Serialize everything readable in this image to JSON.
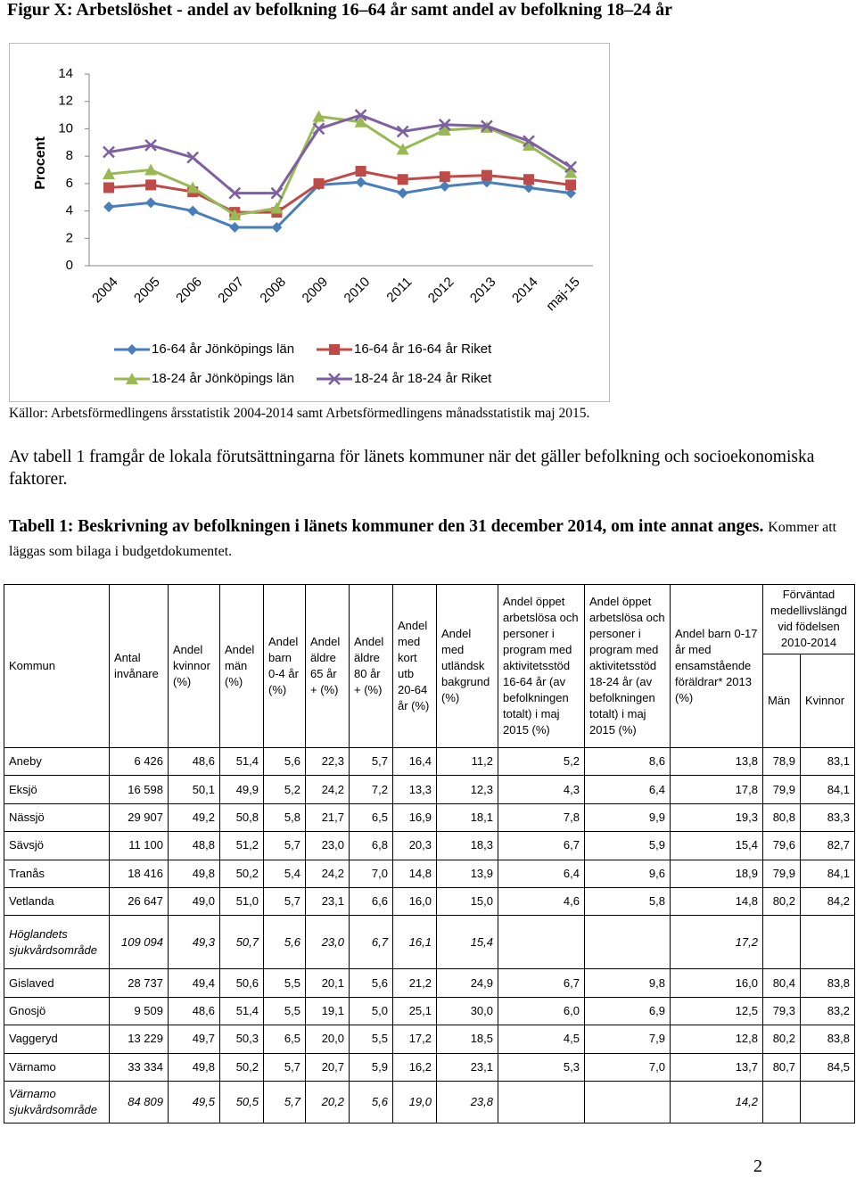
{
  "title": "Figur X: Arbetslöshet - andel av befolkning 16–64 år samt andel av befolkning 18–24 år",
  "chart_data": {
    "type": "line",
    "y_label": "Procent",
    "categories": [
      "2004",
      "2005",
      "2006",
      "2007",
      "2008",
      "2009",
      "2010",
      "2011",
      "2012",
      "2013",
      "2014",
      "maj-15"
    ],
    "series": [
      {
        "name": "16-64 år Jönköpings län",
        "color": "#4a7ebb",
        "marker": "diamond",
        "values": [
          4.3,
          4.6,
          4.0,
          2.8,
          2.8,
          5.9,
          6.1,
          5.3,
          5.8,
          6.1,
          5.7,
          5.3
        ]
      },
      {
        "name": "16-64 år 16-64 år Riket",
        "color": "#be4b48",
        "marker": "square",
        "values": [
          5.7,
          5.9,
          5.4,
          3.9,
          3.9,
          6.0,
          6.9,
          6.3,
          6.5,
          6.6,
          6.3,
          5.9
        ]
      },
      {
        "name": "18-24 år Jönköpings län",
        "color": "#98b954",
        "marker": "triangle",
        "values": [
          6.7,
          7.0,
          5.7,
          3.7,
          4.2,
          10.9,
          10.5,
          8.5,
          9.9,
          10.1,
          8.8,
          6.8
        ]
      },
      {
        "name": "18-24 år 18-24 år Riket",
        "color": "#7d60a0",
        "marker": "x",
        "values": [
          8.3,
          8.8,
          7.9,
          5.3,
          5.3,
          10.0,
          11.0,
          9.8,
          10.3,
          10.2,
          9.1,
          7.2
        ]
      }
    ],
    "ylim": [
      0,
      14
    ],
    "yticks": [
      0,
      2,
      4,
      6,
      8,
      10,
      12,
      14
    ],
    "grid": false,
    "legend": "bottom"
  },
  "source": "Källor: Arbetsförmedlingens årsstatistik 2004-2014 samt Arbetsförmedlingens månadsstatistik maj 2015.",
  "paragraph": "Av tabell 1 framgår de lokala förutsättningarna för länets kommuner när det gäller befolkning och socioekonomiska faktorer.",
  "table": {
    "caption": "Tabell 1: Beskrivning av befolkningen i länets kommuner den 31 december 2014, om inte annat anges.",
    "caption_note": "Kommer att läggas som bilaga i budgetdokumentet.",
    "headers": [
      "Kommun",
      "Antal invånare",
      "Andel kvinnor (%)",
      "Andel män (%)",
      "Andel barn 0-4 år (%)",
      "Andel äldre 65 år + (%)",
      "Andel äldre 80 år + (%)",
      "Andel med kort utb 20-64 år (%)",
      "Andel med utländsk bakgrund (%)",
      "Andel öppet arbetslösa och personer i program med aktivitetsstöd 16-64 år (av befolkningen totalt) i maj 2015 (%)",
      "Andel öppet arbetslösa och personer i program med aktivitetsstöd 18-24 år (av befolkningen totalt) i maj 2015 (%)",
      "Andel barn 0-17 år med ensamstående föräldrar* 2013 (%)",
      "Förväntad medellivslängd vid födelsen 2010-2014"
    ],
    "subheaders": [
      "Män",
      "Kvinnor"
    ],
    "rows": [
      {
        "kommun": "Aneby",
        "values": [
          "6 426",
          "48,6",
          "51,4",
          "5,6",
          "22,3",
          "5,7",
          "16,4",
          "11,2",
          "5,2",
          "8,6",
          "13,8",
          "78,9",
          "83,1"
        ]
      },
      {
        "kommun": "Eksjö",
        "values": [
          "16 598",
          "50,1",
          "49,9",
          "5,2",
          "24,2",
          "7,2",
          "13,3",
          "12,3",
          "4,3",
          "6,4",
          "17,8",
          "79,9",
          "84,1"
        ]
      },
      {
        "kommun": "Nässjö",
        "values": [
          "29 907",
          "49,2",
          "50,8",
          "5,8",
          "21,7",
          "6,5",
          "16,9",
          "18,1",
          "7,8",
          "9,9",
          "19,3",
          "80,8",
          "83,3"
        ]
      },
      {
        "kommun": "Sävsjö",
        "values": [
          "11 100",
          "48,8",
          "51,2",
          "5,7",
          "23,0",
          "6,8",
          "20,3",
          "18,3",
          "6,7",
          "5,9",
          "15,4",
          "79,6",
          "82,7"
        ]
      },
      {
        "kommun": "Tranås",
        "values": [
          "18 416",
          "49,8",
          "50,2",
          "5,4",
          "24,2",
          "7,0",
          "14,8",
          "13,9",
          "6,4",
          "9,6",
          "18,9",
          "79,9",
          "84,1"
        ]
      },
      {
        "kommun": "Vetlanda",
        "values": [
          "26 647",
          "49,0",
          "51,0",
          "5,7",
          "23,1",
          "6,6",
          "16,0",
          "15,0",
          "4,6",
          "5,8",
          "14,8",
          "80,2",
          "84,2"
        ]
      },
      {
        "kommun": "Höglandets sjukvårdsområde",
        "italic": true,
        "values": [
          "109 094",
          "49,3",
          "50,7",
          "5,6",
          "23,0",
          "6,7",
          "16,1",
          "15,4",
          null,
          null,
          "17,2",
          null,
          null
        ]
      },
      {
        "kommun": "Gislaved",
        "values": [
          "28 737",
          "49,4",
          "50,6",
          "5,5",
          "20,1",
          "5,6",
          "21,2",
          "24,9",
          "6,7",
          "9,8",
          "16,0",
          "80,4",
          "83,8"
        ]
      },
      {
        "kommun": "Gnosjö",
        "values": [
          "9 509",
          "48,6",
          "51,4",
          "5,5",
          "19,1",
          "5,0",
          "25,1",
          "30,0",
          "6,0",
          "6,9",
          "12,5",
          "79,3",
          "83,2"
        ]
      },
      {
        "kommun": "Vaggeryd",
        "values": [
          "13 229",
          "49,7",
          "50,3",
          "6,5",
          "20,0",
          "5,5",
          "17,2",
          "18,5",
          "4,5",
          "7,9",
          "12,8",
          "80,2",
          "83,8"
        ]
      },
      {
        "kommun": "Värnamo",
        "values": [
          "33 334",
          "49,8",
          "50,2",
          "5,7",
          "20,7",
          "5,9",
          "16,2",
          "23,1",
          "5,3",
          "7,0",
          "13,7",
          "80,7",
          "84,5"
        ]
      },
      {
        "kommun": "Värnamo sjukvårdsområde",
        "italic": true,
        "values": [
          "84 809",
          "49,5",
          "50,5",
          "5,7",
          "20,2",
          "5,6",
          "19,0",
          "23,8",
          null,
          null,
          "14,2",
          null,
          null
        ]
      }
    ]
  },
  "page_number": "2"
}
